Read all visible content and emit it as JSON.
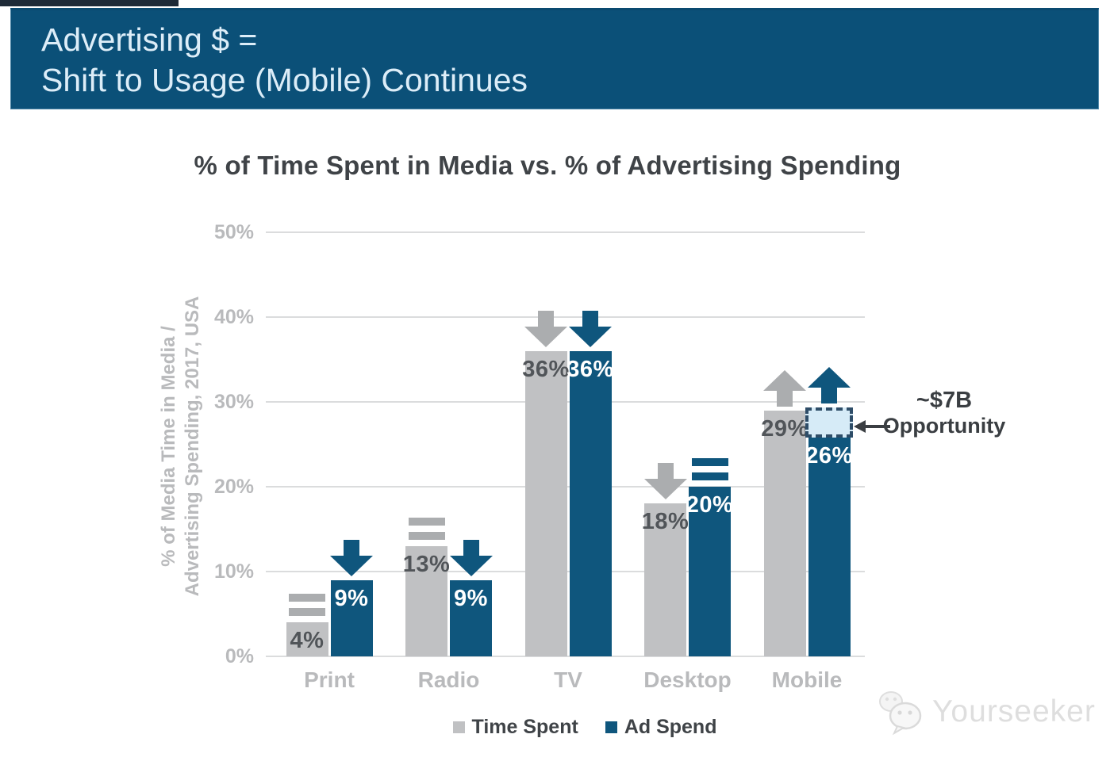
{
  "banner": {
    "title_line1": "Advertising $ =",
    "title_line2": "Shift to Usage (Mobile) Continues"
  },
  "chart_data": {
    "type": "bar",
    "title": "% of Time Spent in Media vs. % of Advertising Spending",
    "ylabel_line1": "% of Media Time in Media /",
    "ylabel_line2": "Advertising Spending, 2017, USA",
    "ylim": [
      0,
      50
    ],
    "ytick_step": 10,
    "ytick_labels": [
      "0%",
      "10%",
      "20%",
      "30%",
      "40%",
      "50%"
    ],
    "grid": true,
    "legend_position": "bottom",
    "categories": [
      "Print",
      "Radio",
      "TV",
      "Desktop",
      "Mobile"
    ],
    "series": [
      {
        "name": "Time Spent",
        "color": "#C0C1C3",
        "marker_color": "#ABADAF",
        "value_text_color": "#515559",
        "values": [
          4,
          13,
          36,
          18,
          29
        ],
        "trends": [
          "flat",
          "flat",
          "down",
          "down",
          "up"
        ]
      },
      {
        "name": "Ad Spend",
        "color": "#0F567D",
        "marker_color": "#0F567D",
        "value_text_color": "#FFFFFF",
        "values": [
          9,
          9,
          36,
          20,
          26
        ],
        "trends": [
          "down",
          "down",
          "down",
          "flat",
          "up"
        ]
      }
    ],
    "value_label_suffix": "%",
    "annotation": {
      "line1": "~$7B",
      "line2": "Opportunity",
      "target_category": "Mobile",
      "gap_top_value": 29,
      "gap_bottom_value": 26
    }
  },
  "watermark": {
    "text": "Yourseeker"
  },
  "colors": {
    "banner_bg": "#0B5078",
    "banner_text": "#DCEDF8",
    "grid": "#DBDCDD",
    "axis_text": "#B9BABC",
    "title_text": "#3F4347",
    "annotation_text": "#3A3E42",
    "gap_fill": "#D6EBF7",
    "gap_border": "#2E4D68",
    "watermark_text": "#D7D7D7"
  }
}
